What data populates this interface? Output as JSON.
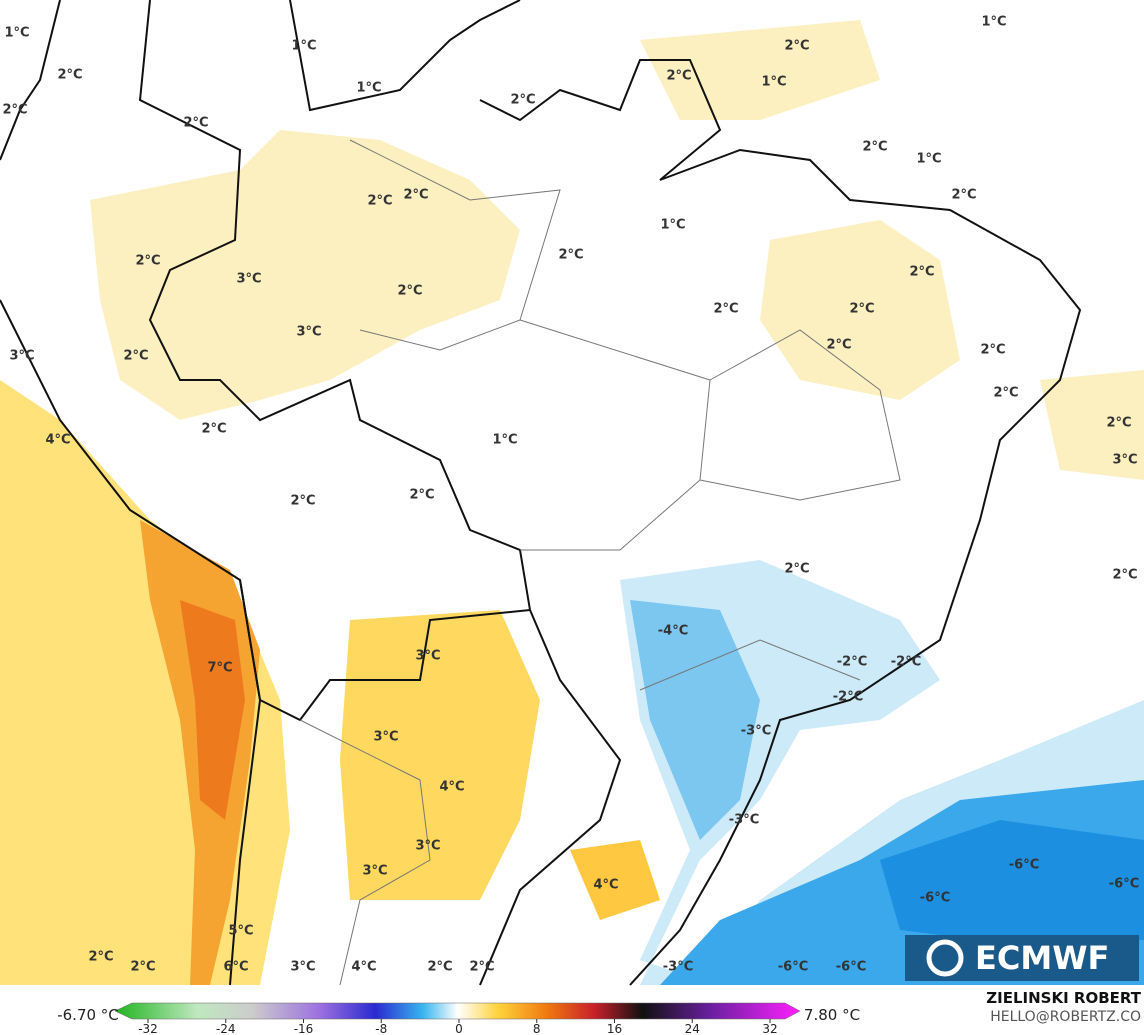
{
  "map": {
    "labels": [
      "1°C",
      "2°C",
      "2°C",
      "1°C",
      "1°C",
      "2°C",
      "2°C",
      "2°C",
      "2°C",
      "1°C",
      "1°C",
      "2°C",
      "1°C",
      "2°C",
      "2°C",
      "2°C",
      "1°C",
      "2°C",
      "2°C",
      "3°C",
      "2°C",
      "3°C",
      "2°C",
      "2°C",
      "2°C",
      "2°C",
      "2°C",
      "2°C",
      "3°C",
      "2°C",
      "2°C",
      "3°C",
      "4°C",
      "2°C",
      "1°C",
      "2°C",
      "2°C",
      "2°C",
      "2°C",
      "-4°C",
      "7°C",
      "3°C",
      "-2°C",
      "-2°C",
      "-2°C",
      "-3°C",
      "3°C",
      "4°C",
      "-3°C",
      "3°C",
      "3°C",
      "-6°C",
      "-6°C",
      "4°C",
      "-6°C",
      "5°C",
      "6°C",
      "2°C",
      "2°C",
      "3°C",
      "4°C",
      "2°C",
      "2°C",
      "-3°C",
      "-6°C",
      "-6°C"
    ]
  },
  "colorbar": {
    "min_label": "-6.70 °C",
    "max_label": "7.80 °C",
    "ticks": [
      -32,
      -24,
      -16,
      -8,
      0,
      8,
      16,
      24,
      32
    ]
  },
  "credit": {
    "author": "ZIELINSKI ROBERT",
    "contact": "HELLO@ROBERTZ.CO"
  },
  "logo": "ECMWF"
}
